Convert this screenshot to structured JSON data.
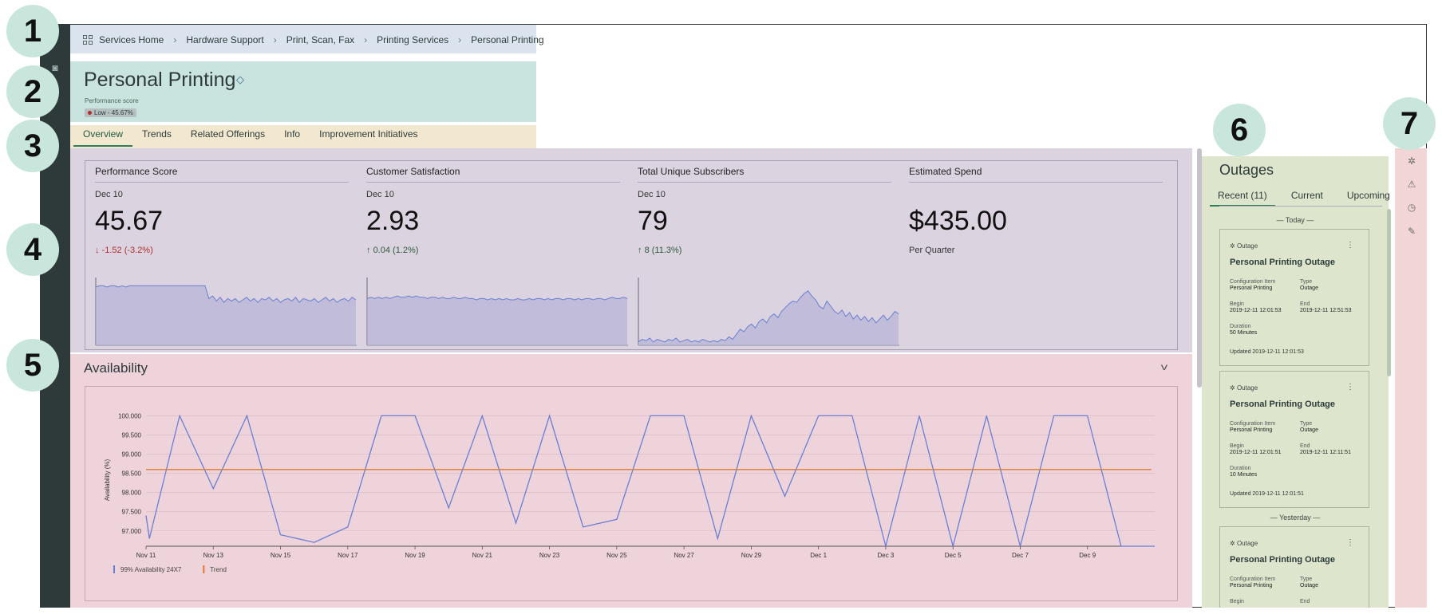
{
  "callouts": [
    "1",
    "2",
    "3",
    "4",
    "5",
    "6",
    "7"
  ],
  "breadcrumb": [
    "Services Home",
    "Hardware Support",
    "Print, Scan, Fax",
    "Printing Services",
    "Personal Printing"
  ],
  "header": {
    "title": "Personal Printing",
    "perf_label": "Performance score",
    "perf_badge": "Low - 45.67%"
  },
  "tabs": [
    "Overview",
    "Trends",
    "Related Offerings",
    "Info",
    "Improvement Initiatives"
  ],
  "metrics": [
    {
      "title": "Performance Score",
      "date": "Dec 10",
      "value": "45.67",
      "change": "-1.52 (-3.2%)",
      "direction": "down"
    },
    {
      "title": "Customer Satisfaction",
      "date": "Dec 10",
      "value": "2.93",
      "change": "0.04 (1.2%)",
      "direction": "up"
    },
    {
      "title": "Total Unique Subscribers",
      "date": "Dec 10",
      "value": "79",
      "change": "8 (11.3%)",
      "direction": "up"
    },
    {
      "title": "Estimated Spend",
      "date": "",
      "value": "$435.00",
      "change": "Per Quarter",
      "direction": "none"
    }
  ],
  "availability": {
    "title": "Availability"
  },
  "chart_data": {
    "type": "line",
    "title": "",
    "xlabel": "",
    "ylabel": "Availability (%)",
    "ylim": [
      96.6,
      100.05
    ],
    "yticks": [
      "97.000",
      "97.500",
      "98.000",
      "98.500",
      "99.000",
      "99.500",
      "100.000"
    ],
    "xticks": [
      "Nov 11",
      "Nov 13",
      "Nov 15",
      "Nov 17",
      "Nov 19",
      "Nov 21",
      "Nov 23",
      "Nov 25",
      "Nov 27",
      "Nov 29",
      "Dec 1",
      "Dec 3",
      "Dec 5",
      "Dec 7",
      "Dec 9"
    ],
    "legend_position": "bottom-left",
    "grid": true,
    "series": [
      {
        "name": "99% Availability 24X7",
        "color": "#6a7fd4",
        "x": [
          0,
          0.1,
          1,
          2,
          3,
          4,
          5,
          6,
          7,
          8,
          9,
          10,
          11,
          12,
          13,
          14,
          15,
          16,
          17,
          18,
          19,
          20,
          21,
          22,
          23,
          24,
          25,
          26,
          27,
          28,
          29,
          30
        ],
        "y": [
          97.4,
          96.8,
          100,
          98.1,
          100,
          96.9,
          96.7,
          97.1,
          100,
          100,
          97.6,
          100,
          97.2,
          100,
          97.1,
          97.3,
          100,
          100,
          96.8,
          100,
          97.9,
          100,
          100,
          96.5,
          100,
          96.5,
          100,
          96.6,
          100,
          100,
          96.5,
          96.5
        ]
      },
      {
        "name": "Trend",
        "color": "#e07a2a",
        "x": [
          0,
          29.9
        ],
        "y": [
          98.6,
          98.6
        ]
      }
    ]
  },
  "sparklines": [
    {
      "color": "#6a7fd4",
      "values": [
        45,
        46,
        46,
        45,
        46,
        46,
        45,
        46,
        45,
        46,
        46,
        46,
        46,
        46,
        46,
        46,
        46,
        46,
        46,
        46,
        46,
        46,
        46,
        46,
        46,
        46,
        46,
        46,
        46,
        46,
        36,
        38,
        34,
        37,
        33,
        36,
        34,
        36,
        33,
        35,
        37,
        34,
        36,
        33,
        36,
        35,
        37,
        34,
        36,
        33,
        35,
        36,
        34,
        37,
        33,
        36,
        35,
        34,
        36,
        33,
        35,
        37,
        34,
        36,
        33,
        35,
        36,
        34,
        37,
        35
      ]
    },
    {
      "color": "#6a7fd4",
      "values": [
        36,
        37,
        36,
        37,
        36,
        37,
        36,
        37,
        38,
        37,
        37,
        38,
        37,
        38,
        37,
        37,
        36,
        37,
        37,
        36,
        37,
        36,
        36,
        37,
        36,
        36,
        37,
        36,
        36,
        35,
        36,
        36,
        35,
        36,
        35,
        36,
        35,
        36,
        35,
        35,
        36,
        35,
        35,
        36,
        35,
        36,
        36,
        35,
        36,
        35,
        36,
        36,
        35,
        36,
        36,
        35,
        36,
        35,
        36,
        36,
        35,
        36,
        36,
        35,
        36,
        37,
        36,
        36,
        37,
        36
      ]
    },
    {
      "color": "#6a7fd4",
      "values": [
        2,
        4,
        3,
        5,
        2,
        4,
        3,
        2,
        4,
        3,
        5,
        2,
        3,
        4,
        2,
        3,
        2,
        4,
        3,
        2,
        3,
        2,
        4,
        3,
        6,
        4,
        8,
        12,
        10,
        14,
        16,
        13,
        18,
        20,
        17,
        22,
        24,
        21,
        26,
        29,
        32,
        34,
        33,
        37,
        40,
        42,
        38,
        35,
        30,
        28,
        34,
        30,
        26,
        24,
        27,
        22,
        25,
        20,
        23,
        19,
        22,
        18,
        21,
        17,
        20,
        23,
        19,
        22,
        26,
        24
      ]
    }
  ],
  "outages": {
    "title": "Outages",
    "tabs": [
      "Recent (11)",
      "Current",
      "Upcoming"
    ],
    "day_today": "Today",
    "day_yesterday": "Yesterday",
    "cards": [
      {
        "kind": "Outage",
        "title": "Personal Printing Outage",
        "ci_label": "Configuration Item",
        "ci": "Personal Printing",
        "type_label": "Type",
        "type": "Outage",
        "begin_label": "Begin",
        "begin": "2019-12-11 12:01:53",
        "end_label": "End",
        "end": "2019-12-11 12:51:53",
        "dur_label": "Duration",
        "dur": "50 Minutes",
        "updated": "Updated 2019-12-11 12:01:53"
      },
      {
        "kind": "Outage",
        "title": "Personal Printing Outage",
        "ci_label": "Configuration Item",
        "ci": "Personal Printing",
        "type_label": "Type",
        "type": "Outage",
        "begin_label": "Begin",
        "begin": "2019-12-11 12:01:51",
        "end_label": "End",
        "end": "2019-12-11 12:11:51",
        "dur_label": "Duration",
        "dur": "10 Minutes",
        "updated": "Updated 2019-12-11 12:01:51"
      },
      {
        "kind": "Outage",
        "title": "Personal Printing Outage",
        "ci_label": "Configuration Item",
        "ci": "Personal Printing",
        "type_label": "Type",
        "type": "Outage",
        "begin_label": "Begin",
        "begin": "",
        "end_label": "End",
        "end": "",
        "dur_label": "",
        "dur": "",
        "updated": ""
      }
    ]
  },
  "icons": {
    "leftbar": [
      "home-icon",
      "camera-icon"
    ],
    "rail": [
      "outage-icon",
      "warning-icon",
      "history-icon",
      "attachment-icon"
    ]
  }
}
